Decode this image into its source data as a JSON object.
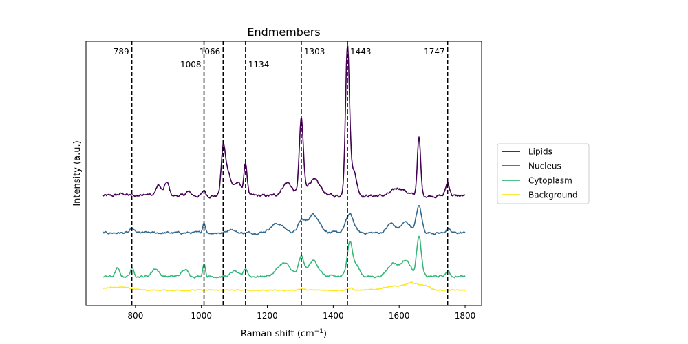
{
  "chart_data": {
    "type": "line",
    "title": "Endmembers",
    "xlabel": "Raman shift (cm",
    "xlabel_superscript": "−1",
    "xlabel_suffix": ")",
    "ylabel": "Intensity (a.u.)",
    "xlim": [
      650,
      1850
    ],
    "ylim": [
      0,
      1
    ],
    "x_ticks": [
      800,
      1000,
      1200,
      1400,
      1600,
      1800
    ],
    "y_ticks_shown": false,
    "grid": false,
    "legend_position": "outside-right",
    "vertical_lines": [
      789,
      1008,
      1066,
      1134,
      1303,
      1443,
      1747
    ],
    "vertical_line_labels": [
      "789",
      "1008",
      "1066",
      "1134",
      "1303",
      "1443",
      "1747"
    ],
    "x_range": [
      700,
      1800
    ],
    "series": [
      {
        "name": "Lipids",
        "color": "#440154",
        "baseline": 0.415,
        "noise": 0.008,
        "peaks": [
          [
            760,
            0.008,
            12
          ],
          [
            830,
            0.01,
            10
          ],
          [
            870,
            0.04,
            8
          ],
          [
            895,
            0.05,
            7
          ],
          [
            960,
            0.015,
            8
          ],
          [
            1008,
            0.02,
            5
          ],
          [
            1066,
            0.16,
            6
          ],
          [
            1080,
            0.09,
            10
          ],
          [
            1110,
            0.05,
            10
          ],
          [
            1134,
            0.12,
            5
          ],
          [
            1260,
            0.05,
            15
          ],
          [
            1303,
            0.28,
            6
          ],
          [
            1340,
            0.06,
            20
          ],
          [
            1443,
            0.55,
            6
          ],
          [
            1460,
            0.1,
            10
          ],
          [
            1600,
            0.03,
            20
          ],
          [
            1660,
            0.22,
            5
          ],
          [
            1747,
            0.05,
            6
          ]
        ]
      },
      {
        "name": "Nucleus",
        "color": "#31688e",
        "baseline": 0.275,
        "noise": 0.006,
        "peaks": [
          [
            790,
            0.015,
            6
          ],
          [
            1008,
            0.04,
            4
          ],
          [
            1090,
            0.015,
            10
          ],
          [
            1230,
            0.035,
            20
          ],
          [
            1303,
            0.04,
            10
          ],
          [
            1340,
            0.07,
            18
          ],
          [
            1450,
            0.07,
            12
          ],
          [
            1575,
            0.035,
            12
          ],
          [
            1620,
            0.04,
            15
          ],
          [
            1660,
            0.1,
            8
          ],
          [
            1747,
            0.015,
            6
          ]
        ]
      },
      {
        "name": "Cytoplasm",
        "color": "#35b779",
        "baseline": 0.11,
        "noise": 0.006,
        "peaks": [
          [
            745,
            0.03,
            6
          ],
          [
            790,
            0.03,
            6
          ],
          [
            860,
            0.03,
            10
          ],
          [
            950,
            0.025,
            10
          ],
          [
            1008,
            0.05,
            4
          ],
          [
            1100,
            0.02,
            10
          ],
          [
            1134,
            0.03,
            6
          ],
          [
            1250,
            0.05,
            20
          ],
          [
            1303,
            0.07,
            8
          ],
          [
            1340,
            0.06,
            15
          ],
          [
            1450,
            0.13,
            8
          ],
          [
            1470,
            0.04,
            10
          ],
          [
            1580,
            0.05,
            15
          ],
          [
            1620,
            0.06,
            15
          ],
          [
            1660,
            0.15,
            7
          ],
          [
            1747,
            0.02,
            6
          ]
        ]
      },
      {
        "name": "Background",
        "color": "#fde725",
        "baseline": 0.058,
        "noise": 0.003,
        "peaks": [
          [
            740,
            0.012,
            40
          ],
          [
            1303,
            0.005,
            10
          ],
          [
            1450,
            0.008,
            8
          ],
          [
            1580,
            0.015,
            30
          ],
          [
            1640,
            0.025,
            20
          ],
          [
            1680,
            0.015,
            15
          ]
        ]
      }
    ]
  }
}
